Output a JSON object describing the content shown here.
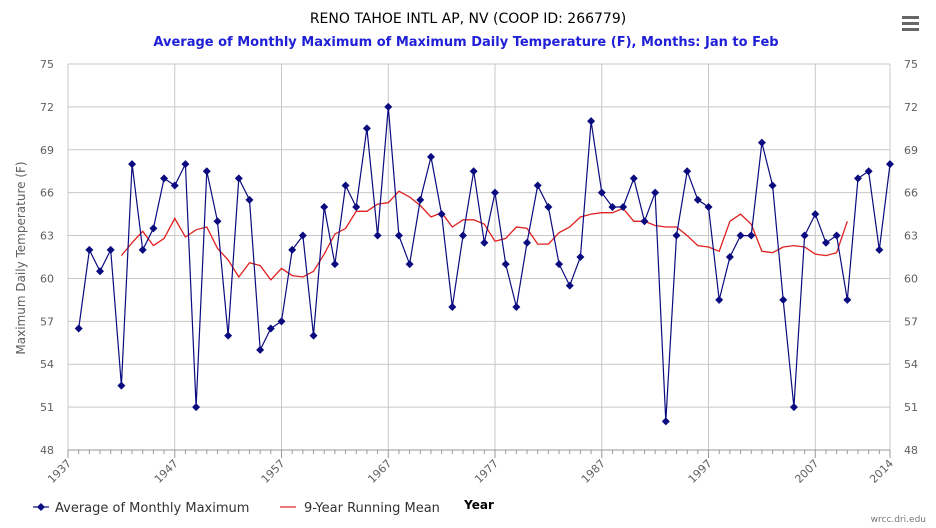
{
  "header": {
    "title": "RENO TAHOE INTL AP, NV (COOP ID: 266779)",
    "subtitle": "Average of Monthly Maximum of Maximum Daily Temperature (F), Months: Jan to Feb"
  },
  "menu": {
    "icon": "hamburger-menu-icon"
  },
  "credit": "wrcc.dri.edu",
  "colors": {
    "series_main": "#0b0b80",
    "series_mean": "#e02020",
    "subtitle": "#2020d8",
    "grid": "#c8c8c8"
  },
  "chart_data": {
    "type": "line",
    "xlabel": "Year",
    "ylabel": "Maximum Daily Temperature (F)",
    "xlim": [
      1937,
      2014
    ],
    "ylim": [
      48,
      75
    ],
    "x_ticks": [
      1937,
      1947,
      1957,
      1967,
      1977,
      1987,
      1997,
      2007,
      2014
    ],
    "y_ticks": [
      48,
      51,
      54,
      57,
      60,
      63,
      66,
      69,
      72,
      75
    ],
    "grid": true,
    "legend_position": "bottom-left",
    "series": [
      {
        "name": "Average of Monthly Maximum",
        "marker": "diamond",
        "x": [
          1938,
          1939,
          1940,
          1941,
          1942,
          1943,
          1944,
          1945,
          1946,
          1947,
          1948,
          1949,
          1950,
          1951,
          1952,
          1953,
          1954,
          1955,
          1956,
          1957,
          1958,
          1959,
          1960,
          1961,
          1962,
          1963,
          1964,
          1965,
          1966,
          1967,
          1968,
          1969,
          1970,
          1971,
          1972,
          1973,
          1974,
          1975,
          1976,
          1977,
          1978,
          1979,
          1980,
          1981,
          1982,
          1983,
          1984,
          1985,
          1986,
          1987,
          1988,
          1989,
          1990,
          1991,
          1992,
          1993,
          1994,
          1995,
          1996,
          1997,
          1998,
          1999,
          2000,
          2001,
          2002,
          2003,
          2004,
          2005,
          2006,
          2007,
          2008,
          2009,
          2010,
          2011,
          2012,
          2013,
          2014
        ],
        "values": [
          56.5,
          62,
          60.5,
          62,
          52.5,
          68,
          62,
          63.5,
          67,
          66.5,
          68,
          51,
          67.5,
          64,
          56,
          67,
          65.5,
          55,
          56.5,
          57,
          62,
          63,
          56,
          65,
          61,
          66.5,
          65,
          70.5,
          63,
          72,
          63,
          61,
          65.5,
          68.5,
          64.5,
          58,
          63,
          67.5,
          62.5,
          66,
          61,
          58,
          62.5,
          66.5,
          65,
          61,
          59.5,
          61.5,
          71,
          66,
          65,
          65,
          67,
          64,
          66,
          50,
          63,
          67.5,
          65.5,
          65,
          58.5,
          61.5,
          63,
          63,
          69.5,
          66.5,
          58.5,
          51,
          63,
          64.5,
          62.5,
          63,
          58.5,
          67,
          67.5,
          62,
          68
        ]
      },
      {
        "name": "9-Year Running Mean",
        "marker": "none",
        "x": [
          1942,
          1943,
          1944,
          1945,
          1946,
          1947,
          1948,
          1949,
          1950,
          1951,
          1952,
          1953,
          1954,
          1955,
          1956,
          1957,
          1958,
          1959,
          1960,
          1961,
          1962,
          1963,
          1964,
          1965,
          1966,
          1967,
          1968,
          1969,
          1970,
          1971,
          1972,
          1973,
          1974,
          1975,
          1976,
          1977,
          1978,
          1979,
          1980,
          1981,
          1982,
          1983,
          1984,
          1985,
          1986,
          1987,
          1988,
          1989,
          1990,
          1991,
          1992,
          1993,
          1994,
          1995,
          1996,
          1997,
          1998,
          1999,
          2000,
          2001,
          2002,
          2003,
          2004,
          2005,
          2006,
          2007,
          2008,
          2009,
          2010
        ],
        "values": [
          61.6,
          62.5,
          63.3,
          62.3,
          62.8,
          64.2,
          62.9,
          63.4,
          63.6,
          62.1,
          61.3,
          60.1,
          61.1,
          60.9,
          59.9,
          60.7,
          60.2,
          60.1,
          60.5,
          61.7,
          63.1,
          63.5,
          64.7,
          64.7,
          65.2,
          65.3,
          66.1,
          65.7,
          65.1,
          64.3,
          64.6,
          63.6,
          64.1,
          64.1,
          63.8,
          62.6,
          62.8,
          63.6,
          63.5,
          62.4,
          62.4,
          63.2,
          63.6,
          64.3,
          64.5,
          64.6,
          64.6,
          64.9,
          64.0,
          64.0,
          63.7,
          63.6,
          63.6,
          63.0,
          62.3,
          62.2,
          61.9,
          64.0,
          64.5,
          63.8,
          61.9,
          61.8,
          62.2,
          62.3,
          62.2,
          61.7,
          61.6,
          61.8,
          64.0
        ]
      }
    ]
  }
}
